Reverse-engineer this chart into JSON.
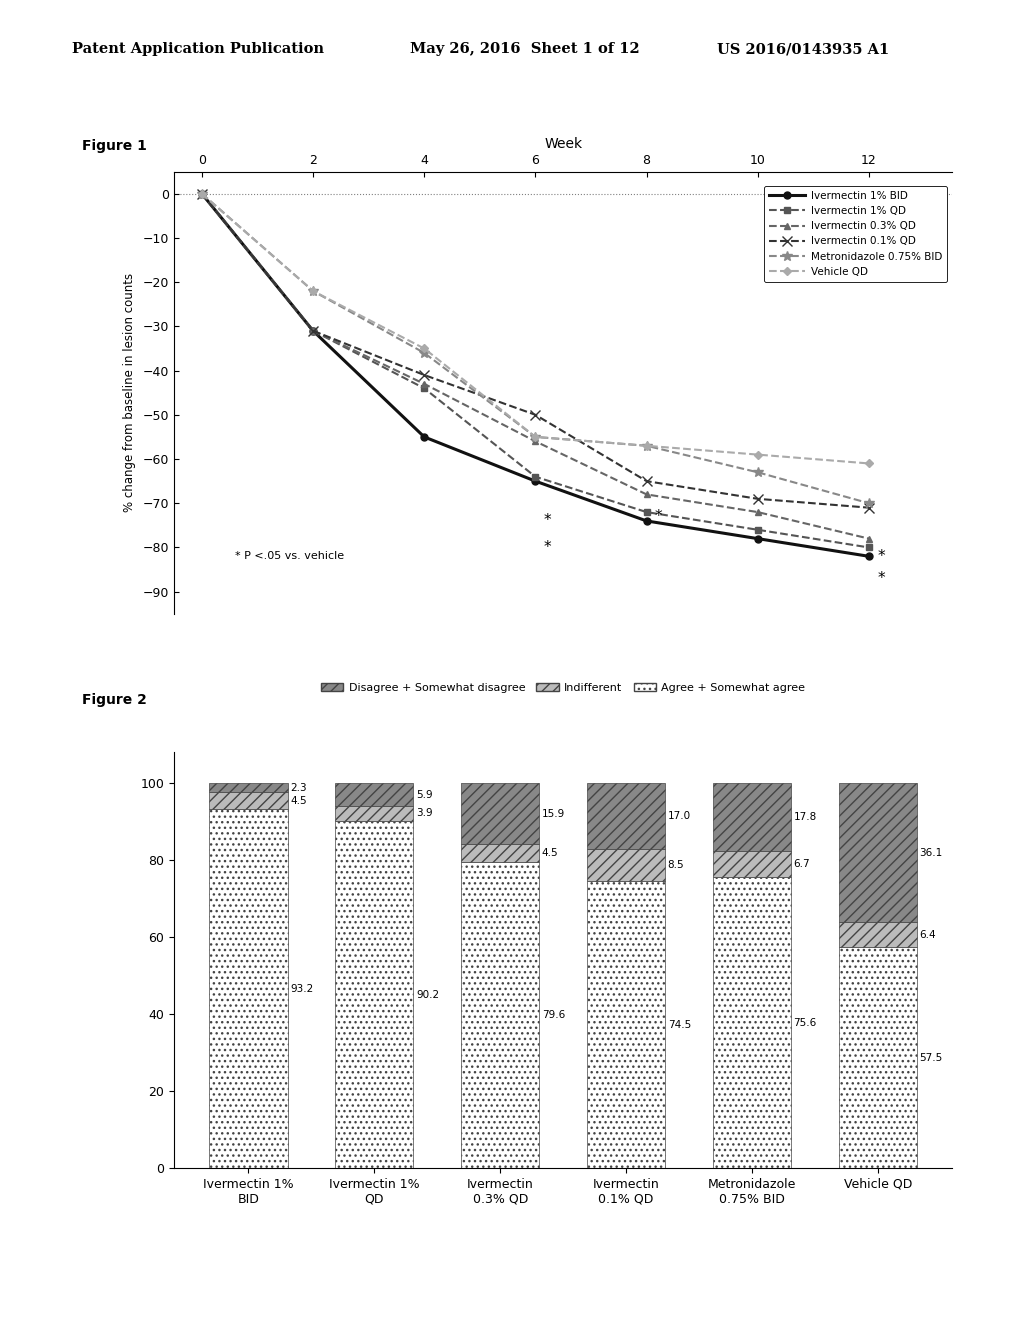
{
  "header_left": "Patent Application Publication",
  "header_mid": "May 26, 2016  Sheet 1 of 12",
  "header_right": "US 2016/0143935 A1",
  "fig1_title": "Figure 1",
  "fig1_xlabel": "Week",
  "fig1_ylabel": "% change from baseline in lesion counts",
  "fig1_xticks": [
    0,
    2,
    4,
    6,
    8,
    10,
    12
  ],
  "fig1_yticks": [
    0,
    -10,
    -20,
    -30,
    -40,
    -50,
    -60,
    -70,
    -80,
    -90
  ],
  "fig1_ylim": [
    -95,
    5
  ],
  "fig1_xlim": [
    -0.5,
    13.5
  ],
  "fig1_annotation": "* P <.05 vs. vehicle",
  "fig1_series": [
    {
      "label": "Ivermectin 1% BID",
      "x": [
        0,
        2,
        4,
        6,
        8,
        10,
        12
      ],
      "y": [
        0,
        -31,
        -55,
        -65,
        -74,
        -78,
        -82
      ],
      "color": "#111111",
      "linewidth": 2.2,
      "marker": "o",
      "markersize": 5,
      "linestyle": "-"
    },
    {
      "label": "Ivermectin 1% QD",
      "x": [
        0,
        2,
        4,
        6,
        8,
        10,
        12
      ],
      "y": [
        0,
        -31,
        -44,
        -64,
        -72,
        -76,
        -80
      ],
      "color": "#555555",
      "linewidth": 1.5,
      "marker": "s",
      "markersize": 5,
      "linestyle": "--"
    },
    {
      "label": "Ivermectin 0.3% QD",
      "x": [
        0,
        2,
        4,
        6,
        8,
        10,
        12
      ],
      "y": [
        0,
        -31,
        -43,
        -56,
        -68,
        -72,
        -78
      ],
      "color": "#666666",
      "linewidth": 1.5,
      "marker": "^",
      "markersize": 5,
      "linestyle": "--"
    },
    {
      "label": "Ivermectin 0.1% QD",
      "x": [
        0,
        2,
        4,
        6,
        8,
        10,
        12
      ],
      "y": [
        0,
        -31,
        -41,
        -50,
        -65,
        -69,
        -71
      ],
      "color": "#333333",
      "linewidth": 1.5,
      "marker": "x",
      "markersize": 7,
      "linestyle": "--"
    },
    {
      "label": "Metronidazole 0.75% BID",
      "x": [
        0,
        2,
        4,
        6,
        8,
        10,
        12
      ],
      "y": [
        0,
        -22,
        -36,
        -55,
        -57,
        -63,
        -70
      ],
      "color": "#888888",
      "linewidth": 1.5,
      "marker": "*",
      "markersize": 7,
      "linestyle": "--"
    },
    {
      "label": "Vehicle QD",
      "x": [
        0,
        2,
        4,
        6,
        8,
        10,
        12
      ],
      "y": [
        0,
        -22,
        -35,
        -55,
        -57,
        -59,
        -61
      ],
      "color": "#aaaaaa",
      "linewidth": 1.5,
      "marker": "D",
      "markersize": 4,
      "linestyle": "--"
    }
  ],
  "fig2_title": "Figure 2",
  "fig2_categories": [
    "Ivermectin 1%\nBID",
    "Ivermectin 1%\nQD",
    "Ivermectin\n0.3% QD",
    "Ivermectin\n0.1% QD",
    "Metronidazole\n0.75% BID",
    "Vehicle QD"
  ],
  "fig2_legend_labels": [
    "Disagree + Somewhat disagree",
    "Indifferent",
    "Agree + Somewhat agree"
  ],
  "fig2_data": {
    "disagree": [
      2.3,
      5.9,
      15.9,
      17.0,
      17.8,
      36.1
    ],
    "indifferent": [
      4.5,
      3.9,
      4.5,
      8.5,
      6.7,
      6.4
    ],
    "agree": [
      93.2,
      90.2,
      79.6,
      74.5,
      75.6,
      57.5
    ]
  },
  "fig2_ylim": [
    0,
    108
  ],
  "fig2_yticks": [
    0,
    20,
    40,
    60,
    80,
    100
  ]
}
